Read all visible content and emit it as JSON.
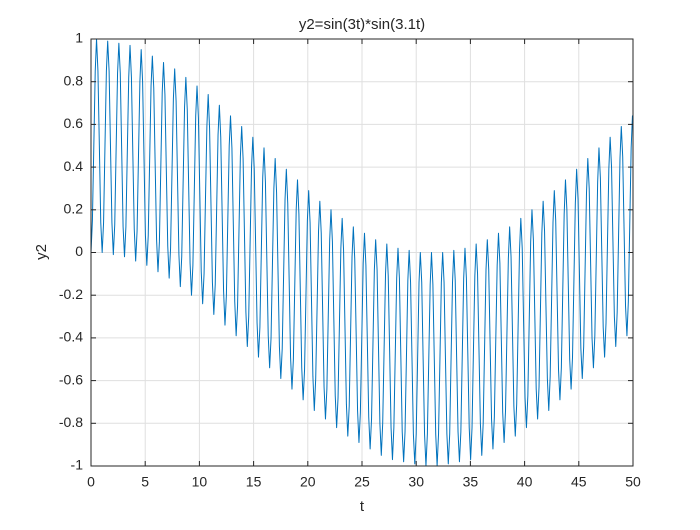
{
  "chart_data": {
    "type": "line",
    "title": "y2=sin(3t)*sin(3.1t)",
    "x_label": "t",
    "y_label": "y2",
    "color": "#0072bd",
    "grid": true,
    "xlim": [
      0,
      50
    ],
    "ylim": [
      -1,
      1
    ],
    "xticks": [
      0,
      5,
      10,
      15,
      20,
      25,
      30,
      35,
      40,
      45,
      50
    ],
    "yticks": [
      -1,
      -0.8,
      -0.6,
      -0.4,
      -0.2,
      0,
      0.2,
      0.4,
      0.6,
      0.8,
      1
    ],
    "x": [
      0,
      0.13,
      0.26,
      0.39,
      0.51,
      0.64,
      0.77,
      0.9,
      1.03,
      1.16,
      1.29,
      1.42,
      1.54,
      1.67,
      1.8,
      1.93,
      2.06,
      2.19,
      2.32,
      2.45,
      2.57,
      2.7,
      2.83,
      2.96,
      3.09,
      3.22,
      3.35,
      3.48,
      3.6,
      3.73,
      3.86,
      3.99,
      4.12,
      4.25,
      4.38,
      4.51,
      4.63,
      4.76,
      4.89,
      5.02,
      5.15,
      5.28,
      5.41,
      5.54,
      5.66,
      5.79,
      5.92,
      6.05,
      6.18,
      6.31,
      6.44,
      6.57,
      6.69,
      6.82,
      6.95,
      7.08,
      7.21,
      7.34,
      7.47,
      7.6,
      7.72,
      7.85,
      7.98,
      8.11,
      8.24,
      8.37,
      8.5,
      8.63,
      8.75,
      8.88,
      9.01,
      9.14,
      9.27,
      9.4,
      9.53,
      9.66,
      9.78,
      9.91,
      10.04,
      10.17,
      10.3,
      10.43,
      10.56,
      10.69,
      10.81,
      10.94,
      11.07,
      11.2,
      11.33,
      11.46,
      11.59,
      11.72,
      11.84,
      11.97,
      12.1,
      12.23,
      12.36,
      12.49,
      12.62,
      12.75,
      12.87,
      13,
      13.13,
      13.26,
      13.39,
      13.52,
      13.65,
      13.78,
      13.9,
      14.03,
      14.16,
      14.29,
      14.42,
      14.55,
      14.68,
      14.81,
      14.93,
      15.06,
      15.19,
      15.32,
      15.45,
      15.58,
      15.71,
      15.84,
      15.96,
      16.09,
      16.22,
      16.35,
      16.48,
      16.61,
      16.74,
      16.87,
      16.99,
      17.12,
      17.25,
      17.38,
      17.51,
      17.64,
      17.77,
      17.9,
      18.02,
      18.15,
      18.28,
      18.41,
      18.54,
      18.67,
      18.8,
      18.93,
      19.05,
      19.18,
      19.31,
      19.44,
      19.57,
      19.7,
      19.83,
      19.96,
      20.08,
      20.21,
      20.34,
      20.47,
      20.6,
      20.73,
      20.86,
      20.99,
      21.11,
      21.24,
      21.37,
      21.5,
      21.63,
      21.76,
      21.89,
      22.02,
      22.14,
      22.27,
      22.4,
      22.53,
      22.66,
      22.79,
      22.92,
      23.05,
      23.17,
      23.3,
      23.43,
      23.56,
      23.69,
      23.82,
      23.95,
      24.08,
      24.2,
      24.33,
      24.46,
      24.59,
      24.72,
      24.85,
      24.98,
      25.11,
      25.23,
      25.36,
      25.49,
      25.62,
      25.75,
      25.88,
      26.01,
      26.14,
      26.26,
      26.39,
      26.52,
      26.65,
      26.78,
      26.91,
      27.04,
      27.17,
      27.29,
      27.42,
      27.55,
      27.68,
      27.81,
      27.94,
      28.07,
      28.2,
      28.32,
      28.45,
      28.58,
      28.71,
      28.84,
      28.97,
      29.1,
      29.23,
      29.35,
      29.48,
      29.61,
      29.74,
      29.87,
      30,
      30.13,
      30.26,
      30.38,
      30.51,
      30.64,
      30.77,
      30.9,
      31.03,
      31.16,
      31.29,
      31.41,
      31.54,
      31.67,
      31.8,
      31.93,
      32.06,
      32.19,
      32.32,
      32.44,
      32.57,
      32.7,
      32.83,
      32.96,
      33.09,
      33.22,
      33.35,
      33.47,
      33.6,
      33.73,
      33.86,
      33.99,
      34.12,
      34.25,
      34.38,
      34.5,
      34.63,
      34.76,
      34.89,
      35.02,
      35.15,
      35.28,
      35.41,
      35.53,
      35.66,
      35.79,
      35.92,
      36.05,
      36.18,
      36.31,
      36.44,
      36.56,
      36.69,
      36.82,
      36.95,
      37.08,
      37.21,
      37.34,
      37.47,
      37.59,
      37.72,
      37.85,
      37.98,
      38.11,
      38.24,
      38.37,
      38.5,
      38.62,
      38.75,
      38.88,
      39.01,
      39.14,
      39.27,
      39.4,
      39.53,
      39.65,
      39.78,
      39.91,
      40.04,
      40.17,
      40.3,
      40.43,
      40.56,
      40.68,
      40.81,
      40.94,
      41.07,
      41.2,
      41.33,
      41.46,
      41.59,
      41.71,
      41.84,
      41.97,
      42.1,
      42.23,
      42.36,
      42.49,
      42.62,
      42.74,
      42.87,
      43,
      43.13,
      43.26,
      43.39,
      43.52,
      43.65,
      43.77,
      43.9,
      44.03,
      44.16,
      44.29,
      44.42,
      44.55,
      44.68,
      44.8,
      44.93,
      45.06,
      45.19,
      45.32,
      45.45,
      45.58,
      45.71,
      45.83,
      45.96,
      46.09,
      46.22,
      46.35,
      46.48,
      46.61,
      46.74,
      46.86,
      46.99,
      47.12,
      47.25,
      47.38,
      47.51,
      47.64,
      47.77,
      47.89,
      48.02,
      48.15,
      48.28,
      48.41,
      48.54,
      48.67,
      48.8,
      48.92,
      49.05,
      49.18,
      49.31,
      49.44,
      49.57,
      49.7,
      49.83,
      49.95,
      50
    ],
    "values": [
      0,
      0.15,
      0.5,
      0.85,
      1,
      0.85,
      0.5,
      0.14,
      0,
      0.14,
      0.5,
      0.85,
      0.99,
      0.85,
      0.49,
      0.14,
      -0.01,
      0.13,
      0.49,
      0.84,
      0.98,
      0.84,
      0.48,
      0.12,
      -0.02,
      0.12,
      0.47,
      0.82,
      0.97,
      0.82,
      0.46,
      0.11,
      -0.04,
      0.1,
      0.45,
      0.8,
      0.95,
      0.8,
      0.44,
      0.08,
      -0.06,
      0.08,
      0.43,
      0.78,
      0.92,
      0.77,
      0.41,
      0.06,
      -0.09,
      0.05,
      0.4,
      0.75,
      0.89,
      0.74,
      0.38,
      0.03,
      -0.12,
      0.02,
      0.37,
      0.72,
      0.86,
      0.71,
      0.35,
      -0.01,
      -0.16,
      -0.02,
      0.33,
      0.68,
      0.82,
      0.67,
      0.31,
      -0.05,
      -0.2,
      -0.06,
      0.29,
      0.64,
      0.78,
      0.63,
      0.27,
      -0.09,
      -0.24,
      -0.1,
      0.25,
      0.59,
      0.74,
      0.58,
      0.22,
      -0.14,
      -0.29,
      -0.15,
      0.2,
      0.55,
      0.69,
      0.54,
      0.18,
      -0.18,
      -0.34,
      -0.2,
      0.15,
      0.5,
      0.64,
      0.49,
      0.13,
      -0.23,
      -0.39,
      -0.25,
      0.1,
      0.45,
      0.59,
      0.44,
      0.08,
      -0.28,
      -0.44,
      -0.3,
      0.05,
      0.4,
      0.54,
      0.39,
      0.03,
      -0.33,
      -0.49,
      -0.35,
      0,
      0.35,
      0.49,
      0.33,
      -0.03,
      -0.39,
      -0.54,
      -0.4,
      -0.05,
      0.3,
      0.44,
      0.28,
      -0.08,
      -0.44,
      -0.59,
      -0.45,
      -0.1,
      0.25,
      0.39,
      0.23,
      -0.13,
      -0.49,
      -0.64,
      -0.5,
      -0.15,
      0.2,
      0.34,
      0.18,
      -0.18,
      -0.54,
      -0.69,
      -0.55,
      -0.2,
      0.15,
      0.29,
      0.14,
      -0.22,
      -0.58,
      -0.74,
      -0.59,
      -0.25,
      0.1,
      0.24,
      0.09,
      -0.27,
      -0.63,
      -0.78,
      -0.64,
      -0.29,
      0.06,
      0.2,
      0.05,
      -0.31,
      -0.67,
      -0.82,
      -0.68,
      -0.33,
      0.02,
      0.16,
      0.01,
      -0.35,
      -0.71,
      -0.86,
      -0.72,
      -0.37,
      -0.02,
      0.12,
      -0.03,
      -0.38,
      -0.74,
      -0.89,
      -0.75,
      -0.4,
      -0.05,
      0.09,
      -0.06,
      -0.41,
      -0.77,
      -0.92,
      -0.78,
      -0.43,
      -0.08,
      0.06,
      -0.08,
      -0.44,
      -0.8,
      -0.95,
      -0.8,
      -0.45,
      -0.1,
      0.04,
      -0.11,
      -0.46,
      -0.82,
      -0.97,
      -0.82,
      -0.47,
      -0.12,
      0.02,
      -0.12,
      -0.48,
      -0.84,
      -0.98,
      -0.84,
      -0.49,
      -0.13,
      0.01,
      -0.14,
      -0.49,
      -0.85,
      -0.99,
      -0.85,
      -0.5,
      -0.14,
      0,
      -0.14,
      -0.5,
      -0.85,
      -1,
      -0.85,
      -0.5,
      -0.15,
      0,
      -0.15,
      -0.5,
      -0.85,
      -1,
      -0.85,
      -0.5,
      -0.14,
      0,
      -0.14,
      -0.5,
      -0.85,
      -0.99,
      -0.85,
      -0.49,
      -0.14,
      0.01,
      -0.13,
      -0.49,
      -0.84,
      -0.98,
      -0.84,
      -0.48,
      -0.12,
      0.02,
      -0.12,
      -0.47,
      -0.82,
      -0.97,
      -0.82,
      -0.46,
      -0.11,
      0.04,
      -0.1,
      -0.45,
      -0.8,
      -0.95,
      -0.8,
      -0.44,
      -0.08,
      0.06,
      -0.08,
      -0.43,
      -0.78,
      -0.92,
      -0.77,
      -0.41,
      -0.06,
      0.09,
      -0.05,
      -0.4,
      -0.75,
      -0.89,
      -0.74,
      -0.38,
      -0.03,
      0.12,
      -0.02,
      -0.37,
      -0.72,
      -0.86,
      -0.71,
      -0.35,
      0.01,
      0.16,
      0.02,
      -0.33,
      -0.68,
      -0.82,
      -0.67,
      -0.31,
      0.05,
      0.2,
      0.06,
      -0.29,
      -0.64,
      -0.78,
      -0.63,
      -0.27,
      0.09,
      0.24,
      0.1,
      -0.25,
      -0.59,
      -0.74,
      -0.58,
      -0.22,
      0.14,
      0.29,
      0.15,
      -0.2,
      -0.55,
      -0.69,
      -0.54,
      -0.18,
      0.18,
      0.34,
      0.2,
      -0.15,
      -0.5,
      -0.64,
      -0.49,
      -0.13,
      0.23,
      0.39,
      0.25,
      -0.1,
      -0.45,
      -0.59,
      -0.44,
      -0.08,
      0.28,
      0.44,
      0.3,
      -0.05,
      -0.4,
      -0.54,
      -0.39,
      -0.03,
      0.33,
      0.49,
      0.35,
      0,
      -0.35,
      -0.49,
      -0.33,
      0.03,
      0.39,
      0.54,
      0.4,
      0.05,
      -0.3,
      -0.44,
      -0.28,
      0.08,
      0.44,
      0.59,
      0.45,
      0.1,
      -0.25,
      -0.39,
      -0.23,
      0.13,
      0.49,
      0.64,
      0.62
    ]
  }
}
